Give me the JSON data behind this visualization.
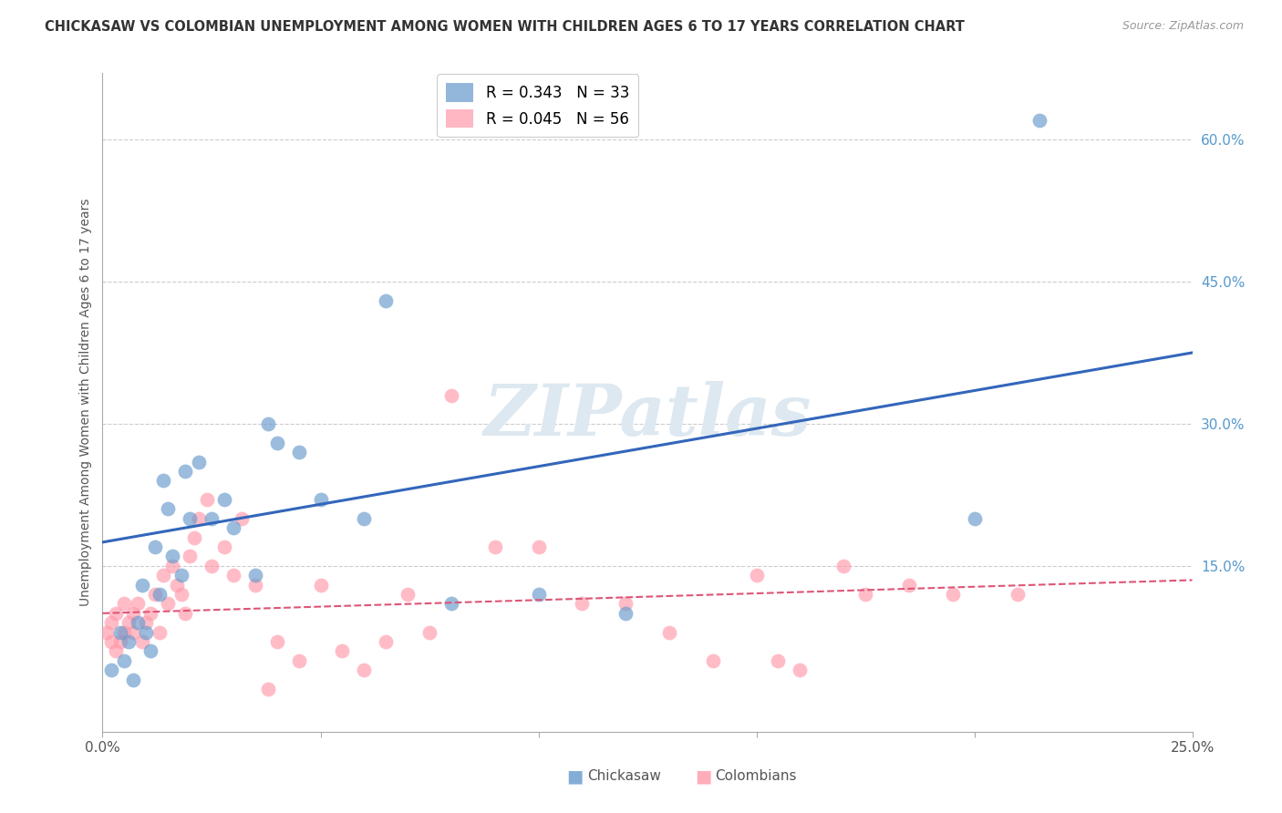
{
  "title": "CHICKASAW VS COLOMBIAN UNEMPLOYMENT AMONG WOMEN WITH CHILDREN AGES 6 TO 17 YEARS CORRELATION CHART",
  "source": "Source: ZipAtlas.com",
  "ylabel": "Unemployment Among Women with Children Ages 6 to 17 years",
  "xlim": [
    0.0,
    0.25
  ],
  "ylim": [
    -0.025,
    0.67
  ],
  "xticks": [
    0.0,
    0.05,
    0.1,
    0.15,
    0.2,
    0.25
  ],
  "xtick_labels": [
    "0.0%",
    "",
    "",
    "",
    "",
    "25.0%"
  ],
  "yticks_right": [
    0.15,
    0.3,
    0.45,
    0.6
  ],
  "ytick_right_labels": [
    "15.0%",
    "30.0%",
    "45.0%",
    "60.0%"
  ],
  "chickasaw_color": "#6699cc",
  "colombian_color": "#ff99aa",
  "chickasaw_R": 0.343,
  "chickasaw_N": 33,
  "colombian_R": 0.045,
  "colombian_N": 56,
  "chickasaw_line_color": "#3366bb",
  "colombian_line_color": "#dd5577",
  "watermark_text": "ZIPatlas",
  "blue_line_y0": 0.175,
  "blue_line_y1": 0.375,
  "pink_line_y0": 0.1,
  "pink_line_y1": 0.135,
  "chickasaw_x": [
    0.002,
    0.004,
    0.005,
    0.006,
    0.007,
    0.008,
    0.009,
    0.01,
    0.011,
    0.012,
    0.013,
    0.014,
    0.015,
    0.016,
    0.018,
    0.019,
    0.02,
    0.022,
    0.025,
    0.028,
    0.03,
    0.035,
    0.038,
    0.04,
    0.045,
    0.05,
    0.06,
    0.065,
    0.08,
    0.1,
    0.12,
    0.2,
    0.215
  ],
  "chickasaw_y": [
    0.04,
    0.08,
    0.05,
    0.07,
    0.03,
    0.09,
    0.13,
    0.08,
    0.06,
    0.17,
    0.12,
    0.24,
    0.21,
    0.16,
    0.14,
    0.25,
    0.2,
    0.26,
    0.2,
    0.22,
    0.19,
    0.14,
    0.3,
    0.28,
    0.27,
    0.22,
    0.2,
    0.43,
    0.11,
    0.12,
    0.1,
    0.2,
    0.62
  ],
  "colombian_x": [
    0.001,
    0.002,
    0.002,
    0.003,
    0.003,
    0.004,
    0.005,
    0.005,
    0.006,
    0.007,
    0.007,
    0.008,
    0.009,
    0.01,
    0.011,
    0.012,
    0.013,
    0.014,
    0.015,
    0.016,
    0.017,
    0.018,
    0.019,
    0.02,
    0.021,
    0.022,
    0.024,
    0.025,
    0.028,
    0.03,
    0.032,
    0.035,
    0.038,
    0.04,
    0.045,
    0.05,
    0.055,
    0.06,
    0.065,
    0.07,
    0.075,
    0.08,
    0.09,
    0.1,
    0.11,
    0.12,
    0.13,
    0.14,
    0.15,
    0.155,
    0.16,
    0.17,
    0.175,
    0.185,
    0.195,
    0.21
  ],
  "colombian_y": [
    0.08,
    0.09,
    0.07,
    0.06,
    0.1,
    0.07,
    0.11,
    0.08,
    0.09,
    0.1,
    0.08,
    0.11,
    0.07,
    0.09,
    0.1,
    0.12,
    0.08,
    0.14,
    0.11,
    0.15,
    0.13,
    0.12,
    0.1,
    0.16,
    0.18,
    0.2,
    0.22,
    0.15,
    0.17,
    0.14,
    0.2,
    0.13,
    0.02,
    0.07,
    0.05,
    0.13,
    0.06,
    0.04,
    0.07,
    0.12,
    0.08,
    0.33,
    0.17,
    0.17,
    0.11,
    0.11,
    0.08,
    0.05,
    0.14,
    0.05,
    0.04,
    0.15,
    0.12,
    0.13,
    0.12,
    0.12
  ]
}
